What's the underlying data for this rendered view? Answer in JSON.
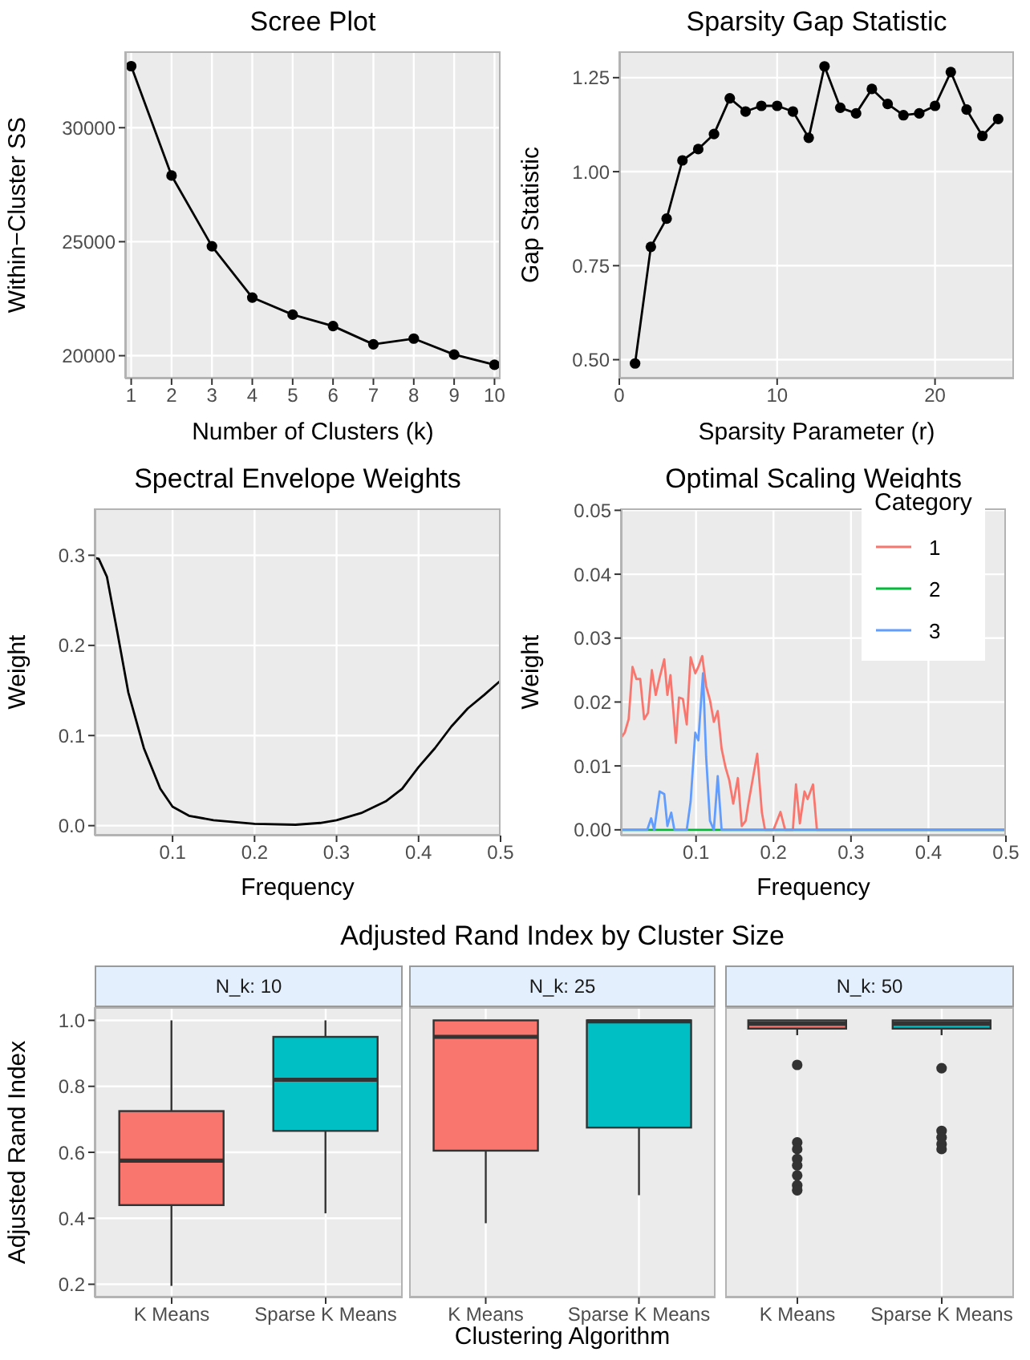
{
  "chart_data": [
    {
      "type": "line",
      "title": "Scree Plot",
      "xlabel": "Number of Clusters (k)",
      "ylabel": "Within−Cluster SS",
      "x": [
        1,
        2,
        3,
        4,
        5,
        6,
        7,
        8,
        9,
        10
      ],
      "values": [
        32700,
        27900,
        24800,
        22550,
        21800,
        21300,
        20500,
        20750,
        20050,
        19600
      ],
      "color": "#000000",
      "xlim": [
        0.85,
        10.15
      ],
      "xticks": [
        1,
        2,
        3,
        4,
        5,
        6,
        7,
        8,
        9,
        10
      ],
      "ylim": [
        19000,
        33350
      ],
      "yticks": [
        20000,
        25000,
        30000
      ],
      "grid": true,
      "marker": "circle"
    },
    {
      "type": "line",
      "title": "Sparsity Gap Statistic",
      "xlabel": "Sparsity Parameter (r)",
      "ylabel": "Gap Statistic",
      "x": [
        1,
        2,
        3,
        4,
        5,
        6,
        7,
        8,
        9,
        10,
        11,
        12,
        13,
        14,
        15,
        16,
        17,
        18,
        19,
        20,
        21,
        22,
        23,
        24
      ],
      "values": [
        0.49,
        0.8,
        0.875,
        1.03,
        1.06,
        1.1,
        1.195,
        1.16,
        1.175,
        1.175,
        1.16,
        1.09,
        1.28,
        1.17,
        1.155,
        1.22,
        1.18,
        1.15,
        1.155,
        1.175,
        1.265,
        1.165,
        1.095,
        1.14
      ],
      "color": "#000000",
      "xlim": [
        0,
        25
      ],
      "xticks": [
        0,
        10,
        20
      ],
      "ylim": [
        0.45,
        1.32
      ],
      "yticks": [
        {
          "value": 0.5,
          "label": "0.50"
        },
        {
          "value": 0.75,
          "label": "0.75"
        },
        {
          "value": 1,
          "label": "1.00"
        },
        {
          "value": 1.25,
          "label": "1.25"
        }
      ],
      "grid": true,
      "marker": "circle"
    },
    {
      "type": "line",
      "title": "Spectral Envelope Weights",
      "xlabel": "Frequency",
      "ylabel": "Weight",
      "x": [
        0.005,
        0.01,
        0.02,
        0.033,
        0.046,
        0.065,
        0.085,
        0.1,
        0.12,
        0.15,
        0.2,
        0.25,
        0.28,
        0.3,
        0.33,
        0.36,
        0.38,
        0.4,
        0.42,
        0.44,
        0.46,
        0.48,
        0.5
      ],
      "values": [
        0.297,
        0.296,
        0.276,
        0.213,
        0.148,
        0.086,
        0.041,
        0.021,
        0.011,
        0.006,
        0.002,
        0.001,
        0.003,
        0.006,
        0.014,
        0.027,
        0.041,
        0.065,
        0.086,
        0.11,
        0.13,
        0.145,
        0.161
      ],
      "color": "#000000",
      "xlim": [
        0.005,
        0.5
      ],
      "xticks": [
        0.1,
        0.2,
        0.3,
        0.4,
        0.5
      ],
      "ylim": [
        -0.011,
        0.352
      ],
      "yticks": [
        {
          "value": 0,
          "label": "0.0"
        },
        0.1,
        0.2,
        0.3
      ],
      "grid": true
    },
    {
      "type": "line",
      "title": "Optimal Scaling Weights",
      "xlabel": "Frequency",
      "ylabel": "Weight",
      "legend_title": "Category",
      "legend": "top right",
      "xlim": [
        0.003,
        0.5
      ],
      "xticks": [
        0.1,
        0.2,
        0.3,
        0.4,
        0.5
      ],
      "ylim": [
        -0.0009,
        0.0503
      ],
      "yticks": [
        {
          "value": 0,
          "label": "0.00"
        },
        0.01,
        0.02,
        0.03,
        0.04,
        0.05
      ],
      "grid": true,
      "series": [
        {
          "name": "1",
          "color": "#f8766d",
          "x": [
            0.003,
            0.008,
            0.013,
            0.018,
            0.023,
            0.028,
            0.033,
            0.038,
            0.043,
            0.048,
            0.053,
            0.059,
            0.063,
            0.067,
            0.074,
            0.078,
            0.083,
            0.088,
            0.093,
            0.099,
            0.103,
            0.108,
            0.113,
            0.118,
            0.123,
            0.128,
            0.133,
            0.138,
            0.143,
            0.148,
            0.154,
            0.159,
            0.164,
            0.168,
            0.174,
            0.179,
            0.185,
            0.189,
            0.194,
            0.2,
            0.209,
            0.215,
            0.219,
            0.225,
            0.229,
            0.234,
            0.24,
            0.244,
            0.251,
            0.256,
            0.5
          ],
          "values": [
            0.0144,
            0.0152,
            0.0173,
            0.0255,
            0.0236,
            0.0236,
            0.0173,
            0.0183,
            0.025,
            0.0211,
            0.0238,
            0.0267,
            0.0211,
            0.0242,
            0.0136,
            0.0207,
            0.0205,
            0.0165,
            0.027,
            0.0245,
            0.0255,
            0.0272,
            0.0225,
            0.0203,
            0.0169,
            0.0186,
            0.0127,
            0.0098,
            0.0077,
            0.0041,
            0.0081,
            0.0006,
            0.0014,
            0.0044,
            0.0085,
            0.0119,
            0.0027,
            0,
            0,
            0,
            0.0028,
            0,
            0,
            0,
            0.0071,
            0.001,
            0.006,
            0.0048,
            0.0071,
            0,
            0
          ]
        },
        {
          "name": "2",
          "color": "#00ba38",
          "x": [
            0.003,
            0.5
          ],
          "values": [
            0,
            0
          ]
        },
        {
          "name": "3",
          "color": "#619cff",
          "x": [
            0.003,
            0.037,
            0.042,
            0.046,
            0.053,
            0.059,
            0.063,
            0.068,
            0.072,
            0.088,
            0.093,
            0.099,
            0.103,
            0.109,
            0.113,
            0.118,
            0.123,
            0.128,
            0.133,
            0.5
          ],
          "values": [
            0,
            0,
            0.0018,
            0,
            0.006,
            0.0056,
            0.0006,
            0.0027,
            0,
            0,
            0.0044,
            0.0152,
            0.014,
            0.0245,
            0.0115,
            0.0014,
            0,
            0.0084,
            0,
            0
          ]
        }
      ]
    },
    {
      "type": "box",
      "subtitle": "N_k: 10",
      "ylabel": "Adjusted Rand Index",
      "categories": [
        "K Means",
        "Sparse K Means"
      ],
      "colors": [
        "#f8766d",
        "#00bfc4"
      ],
      "ylim": [
        0.16,
        1.04
      ],
      "yticks": [
        0.2,
        0.4,
        0.6,
        0.8,
        {
          "value": 1,
          "label": "1.0"
        }
      ],
      "grid": true,
      "boxes": [
        {
          "low": 0.195,
          "q1": 0.44,
          "median": 0.575,
          "q3": 0.725,
          "high": 1.0
        },
        {
          "low": 0.415,
          "q1": 0.665,
          "median": 0.82,
          "q3": 0.95,
          "high": 1.0
        }
      ]
    },
    {
      "type": "box",
      "title": "Adjusted Rand Index by Cluster Size",
      "subtitle": "N_k: 25",
      "xlabel": "Clustering Algorithm",
      "categories": [
        "K Means",
        "Sparse K Means"
      ],
      "colors": [
        "#f8766d",
        "#00bfc4"
      ],
      "ylim": [
        0.16,
        1.04
      ],
      "yticks": [
        0.2,
        0.4,
        0.6,
        0.8,
        1
      ],
      "grid": true,
      "tick_labels": "x",
      "boxes": [
        {
          "low": 0.385,
          "q1": 0.605,
          "median": 0.95,
          "q3": 1.0,
          "high": 1.0
        },
        {
          "low": 0.47,
          "q1": 0.675,
          "median": 0.997,
          "q3": 1.0,
          "high": 1.0
        }
      ]
    },
    {
      "type": "box",
      "subtitle": "N_k: 50",
      "categories": [
        "K Means",
        "Sparse K Means"
      ],
      "colors": [
        "#f8766d",
        "#00bfc4"
      ],
      "ylim": [
        0.16,
        1.04
      ],
      "yticks": [
        0.2,
        0.4,
        0.6,
        0.8,
        1
      ],
      "grid": true,
      "tick_labels": "x",
      "boxes": [
        {
          "low": 0.955,
          "q1": 0.975,
          "median": 0.99,
          "q3": 1.0,
          "high": 1.0,
          "outliers": [
            0.865,
            0.63,
            0.61,
            0.58,
            0.56,
            0.53,
            0.5,
            0.485
          ]
        },
        {
          "low": 0.955,
          "q1": 0.975,
          "median": 0.99,
          "q3": 1.0,
          "high": 1.0,
          "outliers": [
            0.855,
            0.665,
            0.645,
            0.625,
            0.61
          ]
        }
      ]
    }
  ]
}
